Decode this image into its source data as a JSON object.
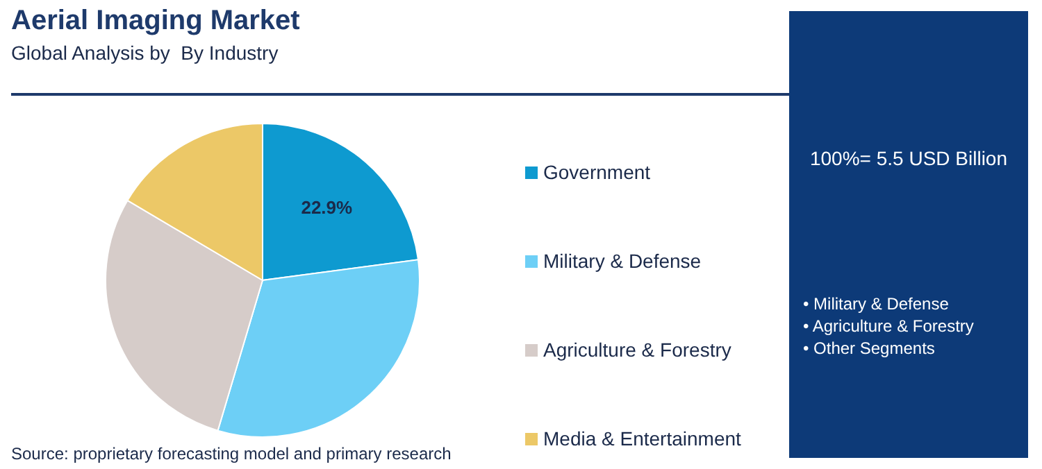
{
  "chart_data": {
    "type": "pie",
    "title": "Aerial Imaging Market",
    "subtitle": "Global Analysis by  By Industry",
    "categories": [
      "Government",
      "Military & Defense",
      "Agriculture & Forestry",
      "Media & Entertainment"
    ],
    "values": [
      22.9,
      31.7,
      28.9,
      16.5
    ],
    "colors": [
      "#0e9ad0",
      "#6dcff6",
      "#d6ccc9",
      "#ecc867"
    ],
    "value_labels": [
      "22.9%",
      null,
      null,
      null
    ],
    "legend": "right",
    "annotations": [
      "100%= 5.5 USD Billion",
      "• Military & Defense",
      "• Agriculture & Forestry",
      "• Other Segments",
      "Source: proprietary forecasting model and primary research"
    ]
  }
}
